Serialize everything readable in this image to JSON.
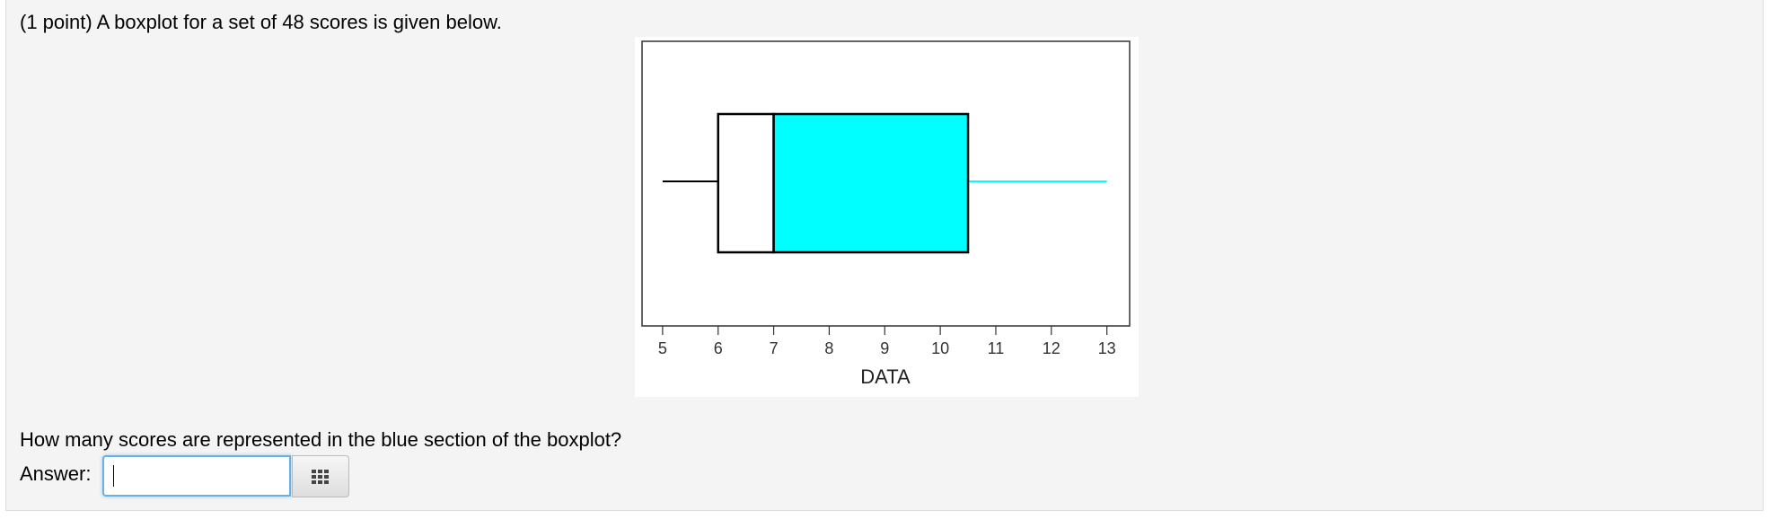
{
  "prompt": "(1 point) A boxplot for a set of 48 scores is given below.",
  "chart_data": {
    "type": "box",
    "xlabel": "DATA",
    "box": {
      "min": 5,
      "q1": 6,
      "median": 7,
      "q3": 10.5,
      "max": 13
    },
    "lower_color": "#ffffff",
    "upper_color": "#00ffff",
    "xlim": [
      4.63,
      13.41
    ],
    "xticks": [
      5,
      6,
      7,
      8,
      9,
      10,
      11,
      12,
      13
    ]
  },
  "question": "How many scores are represented in the blue section of the boxplot?",
  "answer_label": "Answer:"
}
